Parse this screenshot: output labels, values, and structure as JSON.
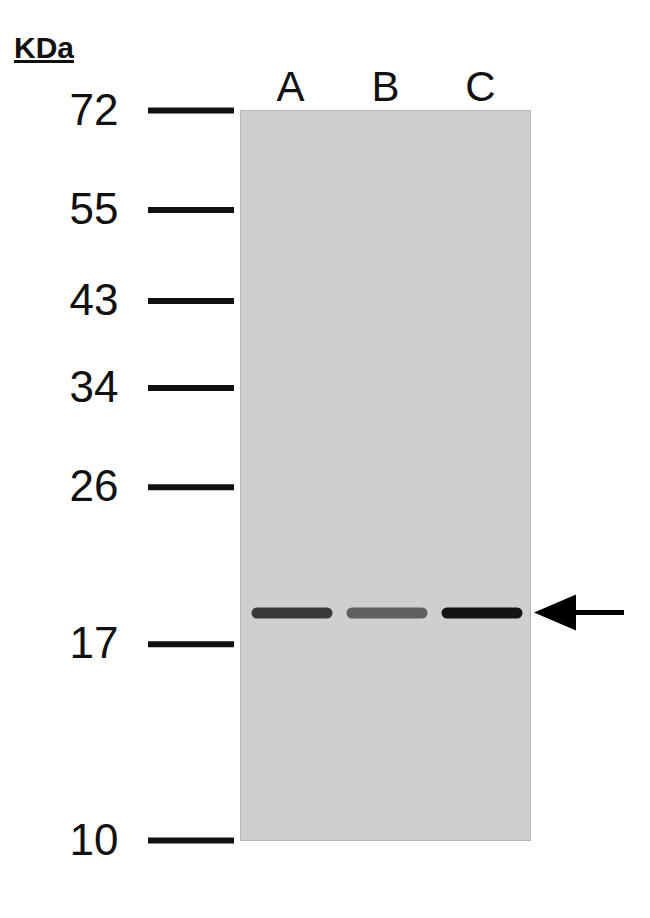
{
  "chart_data": {
    "type": "western_blot",
    "y_label": "KDa",
    "categories": [
      "A",
      "B",
      "C"
    ],
    "values": [
      18.5,
      18.5,
      18.5
    ],
    "colors": [
      "#3a3a3a",
      "#5e5e5e",
      "#141414"
    ],
    "log": "y",
    "ylim": [
      10,
      72
    ],
    "yticks": [
      72,
      55,
      43,
      34,
      26,
      17,
      10
    ]
  }
}
